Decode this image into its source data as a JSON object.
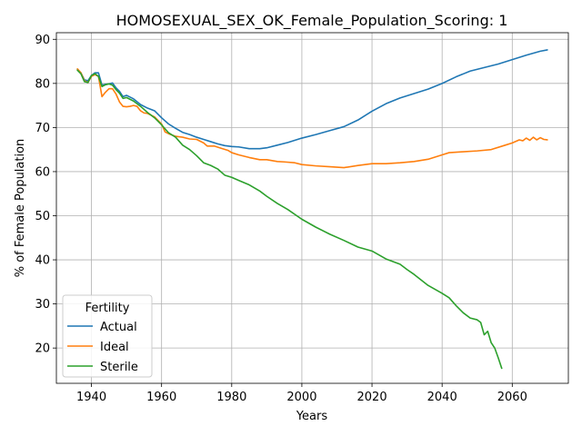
{
  "chart_data": {
    "type": "line",
    "title": "HOMOSEXUAL_SEX_OK_Female_Population_Scoring: 1",
    "xlabel": "Years",
    "ylabel": "% of Female Population",
    "xlim": [
      1930,
      2076
    ],
    "ylim": [
      12,
      91.5
    ],
    "xticks": [
      1940,
      1960,
      1980,
      2000,
      2020,
      2040,
      2060
    ],
    "yticks": [
      20,
      30,
      40,
      50,
      60,
      70,
      80,
      90
    ],
    "grid": true,
    "legend": {
      "title": "Fertility",
      "placement": "lower-left"
    },
    "series": [
      {
        "name": "Actual",
        "color": "#1f77b4",
        "points": [
          [
            1936,
            83.2
          ],
          [
            1937,
            82.4
          ],
          [
            1938,
            80.8
          ],
          [
            1939,
            80.6
          ],
          [
            1940,
            81.8
          ],
          [
            1941,
            82.4
          ],
          [
            1942,
            82.4
          ],
          [
            1943,
            79.6
          ],
          [
            1944,
            79.8
          ],
          [
            1945,
            79.9
          ],
          [
            1946,
            80.1
          ],
          [
            1947,
            79.0
          ],
          [
            1948,
            78.2
          ],
          [
            1949,
            77.0
          ],
          [
            1950,
            77.3
          ],
          [
            1952,
            76.5
          ],
          [
            1954,
            75.2
          ],
          [
            1956,
            74.4
          ],
          [
            1958,
            73.8
          ],
          [
            1960,
            72.2
          ],
          [
            1962,
            70.8
          ],
          [
            1964,
            69.8
          ],
          [
            1966,
            68.9
          ],
          [
            1968,
            68.4
          ],
          [
            1970,
            67.8
          ],
          [
            1972,
            67.3
          ],
          [
            1974,
            66.8
          ],
          [
            1976,
            66.3
          ],
          [
            1978,
            65.9
          ],
          [
            1980,
            65.7
          ],
          [
            1982,
            65.6
          ],
          [
            1985,
            65.2
          ],
          [
            1988,
            65.2
          ],
          [
            1990,
            65.4
          ],
          [
            1993,
            66.0
          ],
          [
            1996,
            66.6
          ],
          [
            2000,
            67.6
          ],
          [
            2004,
            68.4
          ],
          [
            2008,
            69.3
          ],
          [
            2012,
            70.2
          ],
          [
            2016,
            71.7
          ],
          [
            2020,
            73.7
          ],
          [
            2024,
            75.4
          ],
          [
            2028,
            76.7
          ],
          [
            2032,
            77.7
          ],
          [
            2036,
            78.7
          ],
          [
            2040,
            80.0
          ],
          [
            2044,
            81.5
          ],
          [
            2048,
            82.8
          ],
          [
            2052,
            83.6
          ],
          [
            2056,
            84.4
          ],
          [
            2060,
            85.4
          ],
          [
            2064,
            86.4
          ],
          [
            2068,
            87.3
          ],
          [
            2070,
            87.6
          ]
        ]
      },
      {
        "name": "Ideal",
        "color": "#ff7f0e",
        "points": [
          [
            1936,
            83.3
          ],
          [
            1937,
            82.4
          ],
          [
            1938,
            80.6
          ],
          [
            1939,
            80.2
          ],
          [
            1940,
            81.6
          ],
          [
            1941,
            82.0
          ],
          [
            1942,
            81.6
          ],
          [
            1943,
            77.0
          ],
          [
            1944,
            78.0
          ],
          [
            1945,
            78.8
          ],
          [
            1946,
            78.8
          ],
          [
            1947,
            77.6
          ],
          [
            1948,
            75.8
          ],
          [
            1949,
            74.8
          ],
          [
            1950,
            74.7
          ],
          [
            1951,
            74.8
          ],
          [
            1952,
            75.0
          ],
          [
            1953,
            74.8
          ],
          [
            1954,
            73.8
          ],
          [
            1955,
            73.3
          ],
          [
            1956,
            73.2
          ],
          [
            1958,
            72.4
          ],
          [
            1960,
            70.8
          ],
          [
            1961,
            69.0
          ],
          [
            1962,
            68.6
          ],
          [
            1964,
            68.0
          ],
          [
            1966,
            67.8
          ],
          [
            1968,
            67.4
          ],
          [
            1970,
            67.3
          ],
          [
            1972,
            66.5
          ],
          [
            1973,
            65.8
          ],
          [
            1975,
            65.8
          ],
          [
            1977,
            65.3
          ],
          [
            1979,
            64.8
          ],
          [
            1980,
            64.3
          ],
          [
            1982,
            63.8
          ],
          [
            1985,
            63.2
          ],
          [
            1988,
            62.7
          ],
          [
            1990,
            62.7
          ],
          [
            1993,
            62.3
          ],
          [
            1995,
            62.2
          ],
          [
            1998,
            62.0
          ],
          [
            2000,
            61.6
          ],
          [
            2004,
            61.3
          ],
          [
            2008,
            61.1
          ],
          [
            2012,
            60.9
          ],
          [
            2016,
            61.4
          ],
          [
            2020,
            61.8
          ],
          [
            2024,
            61.8
          ],
          [
            2028,
            62.0
          ],
          [
            2032,
            62.3
          ],
          [
            2036,
            62.8
          ],
          [
            2040,
            63.8
          ],
          [
            2042,
            64.3
          ],
          [
            2046,
            64.5
          ],
          [
            2050,
            64.7
          ],
          [
            2054,
            65.0
          ],
          [
            2058,
            66.0
          ],
          [
            2060,
            66.5
          ],
          [
            2062,
            67.2
          ],
          [
            2063,
            67.0
          ],
          [
            2064,
            67.6
          ],
          [
            2065,
            67.1
          ],
          [
            2066,
            67.8
          ],
          [
            2067,
            67.2
          ],
          [
            2068,
            67.7
          ],
          [
            2069,
            67.3
          ],
          [
            2070,
            67.2
          ]
        ]
      },
      {
        "name": "Sterile",
        "color": "#2ca02c",
        "points": [
          [
            1936,
            83.0
          ],
          [
            1937,
            82.2
          ],
          [
            1938,
            80.4
          ],
          [
            1939,
            80.2
          ],
          [
            1940,
            81.8
          ],
          [
            1941,
            82.2
          ],
          [
            1942,
            81.6
          ],
          [
            1943,
            79.3
          ],
          [
            1944,
            79.7
          ],
          [
            1945,
            79.9
          ],
          [
            1946,
            79.6
          ],
          [
            1947,
            78.6
          ],
          [
            1948,
            77.8
          ],
          [
            1949,
            76.6
          ],
          [
            1950,
            76.8
          ],
          [
            1952,
            76.0
          ],
          [
            1954,
            74.8
          ],
          [
            1956,
            73.4
          ],
          [
            1958,
            72.2
          ],
          [
            1960,
            70.6
          ],
          [
            1962,
            68.8
          ],
          [
            1964,
            67.8
          ],
          [
            1966,
            66.0
          ],
          [
            1968,
            65.0
          ],
          [
            1970,
            63.6
          ],
          [
            1972,
            62.0
          ],
          [
            1974,
            61.4
          ],
          [
            1976,
            60.6
          ],
          [
            1978,
            59.2
          ],
          [
            1980,
            58.7
          ],
          [
            1982,
            58.0
          ],
          [
            1985,
            57.0
          ],
          [
            1988,
            55.6
          ],
          [
            1990,
            54.4
          ],
          [
            1993,
            52.8
          ],
          [
            1996,
            51.4
          ],
          [
            2000,
            49.2
          ],
          [
            2004,
            47.4
          ],
          [
            2008,
            45.8
          ],
          [
            2012,
            44.4
          ],
          [
            2016,
            42.9
          ],
          [
            2020,
            42.0
          ],
          [
            2024,
            40.2
          ],
          [
            2028,
            39.0
          ],
          [
            2030,
            37.8
          ],
          [
            2032,
            36.7
          ],
          [
            2036,
            34.2
          ],
          [
            2040,
            32.4
          ],
          [
            2042,
            31.4
          ],
          [
            2044,
            29.6
          ],
          [
            2046,
            28.0
          ],
          [
            2048,
            26.8
          ],
          [
            2050,
            26.4
          ],
          [
            2051,
            25.8
          ],
          [
            2052,
            23.0
          ],
          [
            2053,
            23.8
          ],
          [
            2054,
            21.2
          ],
          [
            2055,
            20.0
          ],
          [
            2056,
            17.8
          ],
          [
            2057,
            15.4
          ]
        ]
      }
    ]
  }
}
